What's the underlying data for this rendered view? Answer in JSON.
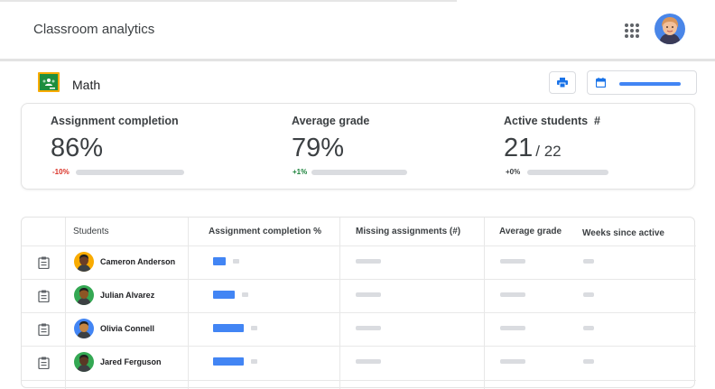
{
  "app": {
    "title": "Classroom analytics"
  },
  "course": {
    "name": "Math"
  },
  "colors": {
    "accent": "#4285f4",
    "negative": "#d93025",
    "positive": "#188038",
    "placeholder": "#dadce0"
  },
  "metrics": [
    {
      "label": "Assignment completion",
      "value": "86%",
      "delta": "-10%",
      "delta_tone": "negative"
    },
    {
      "label": "Average grade",
      "value": "79%",
      "delta": "+1%",
      "delta_tone": "positive"
    },
    {
      "label": "Active students  #",
      "value": "21",
      "value_suffix": "/ 22",
      "delta": "+0%",
      "delta_tone": "neutral"
    }
  ],
  "table": {
    "headers": [
      "Students",
      "Assignment completion %",
      "Missing assignments (#)",
      "Average grade",
      "Weeks since active"
    ],
    "rows": [
      {
        "name": "Cameron Anderson",
        "avatar_bg": "#f9ab00",
        "completion": 0.3
      },
      {
        "name": "Julian Alvarez",
        "avatar_bg": "#34a853",
        "completion": 0.5
      },
      {
        "name": "Olivia Connell",
        "avatar_bg": "#4285f4",
        "completion": 0.7
      },
      {
        "name": "Jared  Ferguson",
        "avatar_bg": "#34a853",
        "completion": 0.7
      }
    ]
  },
  "icons": {
    "apps": "apps-grid-icon",
    "print": "print-icon",
    "calendar": "calendar-icon",
    "report": "clipboard-icon",
    "class": "google-classroom-icon"
  }
}
